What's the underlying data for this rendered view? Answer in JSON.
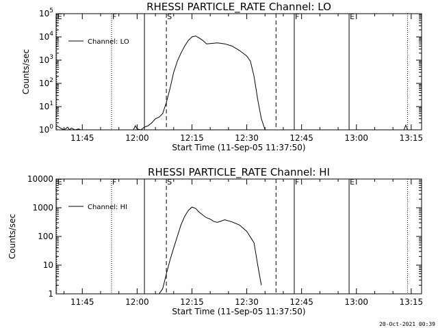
{
  "chart_data": [
    {
      "type": "line",
      "title": "RHESSI PARTICLE_RATE Channel: LO",
      "xlabel": "Start Time (11-Sep-05 11:37:50)",
      "ylabel": "Counts/sec",
      "yscale": "log",
      "ylim": [
        1,
        100000
      ],
      "xlim": [
        "11:37:50",
        "13:17:50"
      ],
      "x_ticks": [
        "11:45",
        "12:00",
        "12:15",
        "12:30",
        "12:45",
        "13:00",
        "13:15"
      ],
      "y_ticks": [
        {
          "value": 1,
          "label": "10^0"
        },
        {
          "value": 10,
          "label": "10^1"
        },
        {
          "value": 100,
          "label": "10^2"
        },
        {
          "value": 1000,
          "label": "10^3"
        },
        {
          "value": 10000,
          "label": "10^4"
        },
        {
          "value": 100000,
          "label": "10^5"
        }
      ],
      "legend": {
        "placement": "top-left",
        "entries": [
          "Channel: LO"
        ]
      },
      "markers": [
        {
          "time": "11:38",
          "label": "E",
          "style": "dotted"
        },
        {
          "time": "11:53",
          "label": "F",
          "style": "dotted"
        },
        {
          "time": "12:02",
          "label": "",
          "style": "solid"
        },
        {
          "time": "12:08",
          "label": "S",
          "style": "dashed"
        },
        {
          "time": "12:38",
          "label": "",
          "style": "dashed"
        },
        {
          "time": "12:43",
          "label": "F",
          "style": "solid"
        },
        {
          "time": "12:58",
          "label": "E",
          "style": "solid"
        },
        {
          "time": "13:14",
          "label": "",
          "style": "dotted"
        }
      ],
      "series": [
        {
          "name": "Channel: LO",
          "x": [
            "11:38",
            "11:39",
            "11:40",
            "11:41",
            "11:41:30",
            "11:42",
            "11:43",
            "11:44",
            "11:44:30",
            "11:59",
            "11:59:30",
            "12:00",
            "12:01",
            "12:02",
            "12:03",
            "12:04",
            "12:05",
            "12:06",
            "12:07",
            "12:08",
            "12:09",
            "12:10",
            "12:11",
            "12:12",
            "12:13",
            "12:14",
            "12:15",
            "12:16",
            "12:17",
            "12:18",
            "12:19",
            "12:20",
            "12:22",
            "12:24",
            "12:26",
            "12:28",
            "12:30",
            "12:31",
            "12:32",
            "12:33",
            "12:34",
            "12:35",
            "12:36",
            "12:37",
            "13:13",
            "13:13:30",
            "13:14"
          ],
          "y": [
            1.5,
            1.2,
            1,
            1.3,
            1,
            1.2,
            1,
            1.1,
            1,
            1,
            1.5,
            1.1,
            1,
            1.3,
            1.5,
            2,
            3,
            3.5,
            5,
            15,
            60,
            300,
            900,
            2000,
            4000,
            7000,
            10000,
            11000,
            9000,
            7000,
            5000,
            5200,
            5500,
            5000,
            4000,
            2600,
            1500,
            900,
            200,
            20,
            3,
            1,
            1,
            1,
            1,
            1.6,
            1
          ]
        }
      ]
    },
    {
      "type": "line",
      "title": "RHESSI PARTICLE_RATE Channel: HI",
      "xlabel": "Start Time (11-Sep-05 11:37:50)",
      "ylabel": "Counts/sec",
      "yscale": "log",
      "ylim": [
        1,
        10000
      ],
      "xlim": [
        "11:37:50",
        "13:17:50"
      ],
      "x_ticks": [
        "11:45",
        "12:00",
        "12:15",
        "12:30",
        "12:45",
        "13:00",
        "13:15"
      ],
      "y_ticks": [
        {
          "value": 1,
          "label": "1"
        },
        {
          "value": 10,
          "label": "10"
        },
        {
          "value": 100,
          "label": "100"
        },
        {
          "value": 1000,
          "label": "1000"
        },
        {
          "value": 10000,
          "label": "10000"
        }
      ],
      "legend": {
        "placement": "top-left",
        "entries": [
          "Channel: HI"
        ]
      },
      "markers": [
        {
          "time": "11:38",
          "label": "E",
          "style": "dotted"
        },
        {
          "time": "11:53",
          "label": "F",
          "style": "dotted"
        },
        {
          "time": "12:02",
          "label": "",
          "style": "solid"
        },
        {
          "time": "12:08",
          "label": "S",
          "style": "dashed"
        },
        {
          "time": "12:38",
          "label": "",
          "style": "dashed"
        },
        {
          "time": "12:43",
          "label": "F",
          "style": "solid"
        },
        {
          "time": "12:58",
          "label": "E",
          "style": "solid"
        },
        {
          "time": "13:14",
          "label": "",
          "style": "dotted"
        }
      ],
      "series": [
        {
          "name": "Channel: HI",
          "x": [
            "12:06",
            "12:07",
            "12:08",
            "12:09",
            "12:10",
            "12:11",
            "12:12",
            "12:13",
            "12:14",
            "12:15",
            "12:16",
            "12:17",
            "12:18",
            "12:19",
            "12:20",
            "12:21",
            "12:22",
            "12:24",
            "12:26",
            "12:28",
            "12:30",
            "12:32",
            "12:33",
            "12:34"
          ],
          "y": [
            1,
            1.5,
            5,
            15,
            40,
            100,
            250,
            500,
            800,
            1050,
            950,
            700,
            550,
            450,
            400,
            330,
            310,
            380,
            320,
            250,
            150,
            60,
            10,
            2
          ]
        }
      ]
    }
  ],
  "footer": {
    "date_stamp": "20-Oct-2021 00:39"
  }
}
